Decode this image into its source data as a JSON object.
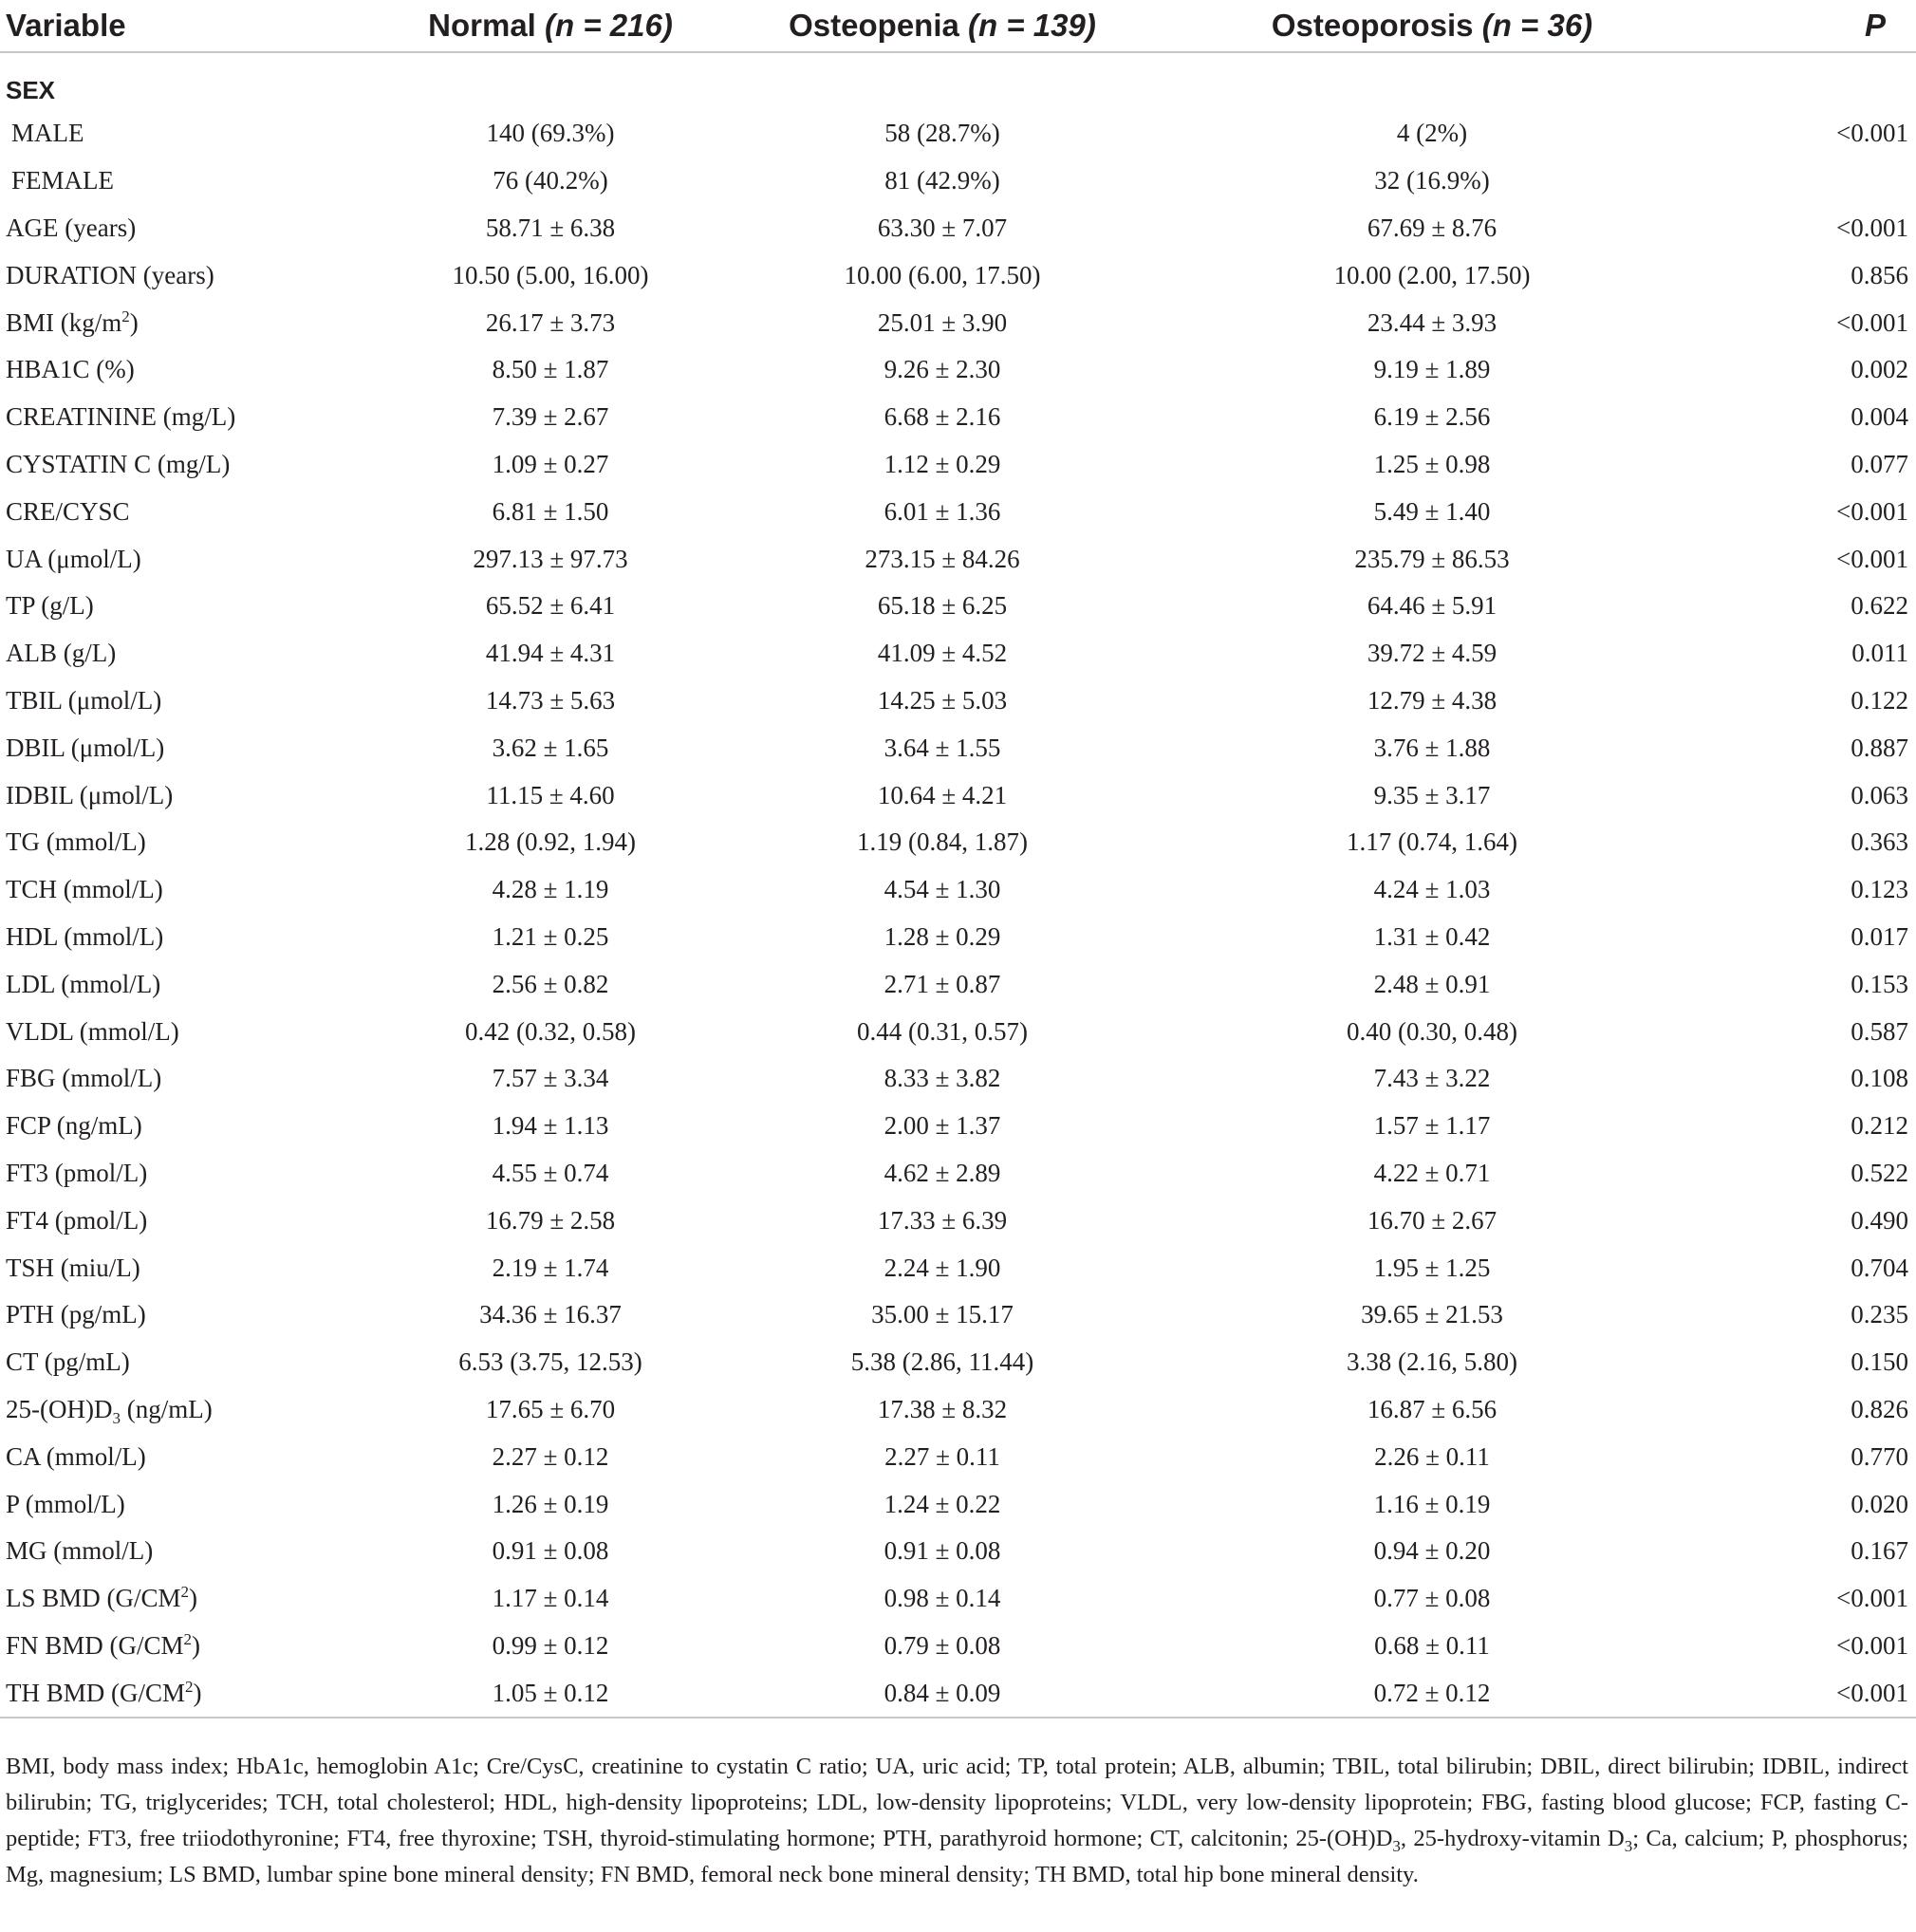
{
  "table": {
    "headers": {
      "variable": "Variable",
      "normal": "Normal",
      "normal_n": "(n = 216)",
      "osteopenia": "Osteopenia",
      "osteopenia_n": "(n = 139)",
      "osteoporosis": "Osteoporosis",
      "osteoporosis_n": "(n = 36)",
      "p": "P"
    },
    "section_sex": "SEX",
    "rows": [
      {
        "label": "MALE",
        "normal": "140 (69.3%)",
        "osteopenia": "58 (28.7%)",
        "osteoporosis": "4 (2%)",
        "p": "<0.001"
      },
      {
        "label": "FEMALE",
        "normal": "76 (40.2%)",
        "osteopenia": "81 (42.9%)",
        "osteoporosis": "32 (16.9%)",
        "p": ""
      },
      {
        "label": "AGE (years)",
        "normal": "58.71 ± 6.38",
        "osteopenia": "63.30 ± 7.07",
        "osteoporosis": "67.69 ± 8.76",
        "p": "<0.001"
      },
      {
        "label": "DURATION (years)",
        "normal": "10.50 (5.00, 16.00)",
        "osteopenia": "10.00 (6.00, 17.50)",
        "osteoporosis": "10.00 (2.00, 17.50)",
        "p": "0.856"
      },
      {
        "label_pre": "BMI (kg/m",
        "label_sup": "2",
        "label_post": ")",
        "normal": "26.17 ± 3.73",
        "osteopenia": "25.01 ± 3.90",
        "osteoporosis": "23.44 ± 3.93",
        "p": "<0.001"
      },
      {
        "label": "HBA1C (%)",
        "normal": "8.50 ± 1.87",
        "osteopenia": "9.26 ± 2.30",
        "osteoporosis": "9.19 ± 1.89",
        "p": "0.002"
      },
      {
        "label": "CREATININE (mg/L)",
        "normal": "7.39 ± 2.67",
        "osteopenia": "6.68 ± 2.16",
        "osteoporosis": "6.19 ± 2.56",
        "p": "0.004"
      },
      {
        "label": "CYSTATIN C (mg/L)",
        "normal": "1.09 ± 0.27",
        "osteopenia": "1.12 ± 0.29",
        "osteoporosis": "1.25 ± 0.98",
        "p": "0.077"
      },
      {
        "label": "CRE/CYSC",
        "normal": "6.81 ± 1.50",
        "osteopenia": "6.01 ± 1.36",
        "osteoporosis": "5.49 ± 1.40",
        "p": "<0.001"
      },
      {
        "label": "UA (μmol/L)",
        "normal": "297.13 ± 97.73",
        "osteopenia": "273.15 ± 84.26",
        "osteoporosis": "235.79 ± 86.53",
        "p": "<0.001"
      },
      {
        "label": "TP (g/L)",
        "normal": "65.52 ± 6.41",
        "osteopenia": "65.18 ± 6.25",
        "osteoporosis": "64.46 ± 5.91",
        "p": "0.622"
      },
      {
        "label": "ALB (g/L)",
        "normal": "41.94 ± 4.31",
        "osteopenia": "41.09 ± 4.52",
        "osteoporosis": "39.72 ± 4.59",
        "p": "0.011"
      },
      {
        "label": "TBIL (μmol/L)",
        "normal": "14.73 ± 5.63",
        "osteopenia": "14.25 ± 5.03",
        "osteoporosis": "12.79 ± 4.38",
        "p": "0.122"
      },
      {
        "label": "DBIL (μmol/L)",
        "normal": "3.62 ± 1.65",
        "osteopenia": "3.64 ± 1.55",
        "osteoporosis": "3.76 ± 1.88",
        "p": "0.887"
      },
      {
        "label": "IDBIL (μmol/L)",
        "normal": "11.15 ± 4.60",
        "osteopenia": "10.64 ± 4.21",
        "osteoporosis": "9.35 ± 3.17",
        "p": "0.063"
      },
      {
        "label": "TG (mmol/L)",
        "normal": "1.28 (0.92, 1.94)",
        "osteopenia": "1.19 (0.84, 1.87)",
        "osteoporosis": "1.17 (0.74, 1.64)",
        "p": "0.363"
      },
      {
        "label": "TCH (mmol/L)",
        "normal": "4.28 ± 1.19",
        "osteopenia": "4.54 ± 1.30",
        "osteoporosis": "4.24 ± 1.03",
        "p": "0.123"
      },
      {
        "label": "HDL (mmol/L)",
        "normal": "1.21 ± 0.25",
        "osteopenia": "1.28 ± 0.29",
        "osteoporosis": "1.31 ± 0.42",
        "p": "0.017"
      },
      {
        "label": "LDL (mmol/L)",
        "normal": "2.56 ± 0.82",
        "osteopenia": "2.71 ± 0.87",
        "osteoporosis": "2.48 ± 0.91",
        "p": "0.153"
      },
      {
        "label": "VLDL (mmol/L)",
        "normal": "0.42 (0.32, 0.58)",
        "osteopenia": "0.44 (0.31, 0.57)",
        "osteoporosis": "0.40 (0.30, 0.48)",
        "p": "0.587"
      },
      {
        "label": "FBG (mmol/L)",
        "normal": "7.57 ± 3.34",
        "osteopenia": "8.33 ± 3.82",
        "osteoporosis": "7.43 ± 3.22",
        "p": "0.108"
      },
      {
        "label": "FCP (ng/mL)",
        "normal": "1.94 ± 1.13",
        "osteopenia": "2.00 ± 1.37",
        "osteoporosis": "1.57 ± 1.17",
        "p": "0.212"
      },
      {
        "label": "FT3 (pmol/L)",
        "normal": "4.55 ± 0.74",
        "osteopenia": "4.62 ± 2.89",
        "osteoporosis": "4.22 ± 0.71",
        "p": "0.522"
      },
      {
        "label": "FT4 (pmol/L)",
        "normal": "16.79 ± 2.58",
        "osteopenia": "17.33 ± 6.39",
        "osteoporosis": "16.70 ± 2.67",
        "p": "0.490"
      },
      {
        "label": "TSH (miu/L)",
        "normal": "2.19 ± 1.74",
        "osteopenia": "2.24 ± 1.90",
        "osteoporosis": "1.95 ± 1.25",
        "p": "0.704"
      },
      {
        "label": "PTH (pg/mL)",
        "normal": "34.36 ± 16.37",
        "osteopenia": "35.00 ± 15.17",
        "osteoporosis": "39.65 ± 21.53",
        "p": "0.235"
      },
      {
        "label": "CT (pg/mL)",
        "normal": "6.53 (3.75, 12.53)",
        "osteopenia": "5.38 (2.86, 11.44)",
        "osteoporosis": "3.38 (2.16, 5.80)",
        "p": "0.150"
      },
      {
        "label_pre": "25-(OH)D",
        "label_sub": "3",
        "label_post": " (ng/mL)",
        "normal": "17.65 ± 6.70",
        "osteopenia": "17.38 ± 8.32",
        "osteoporosis": "16.87 ± 6.56",
        "p": "0.826"
      },
      {
        "label": "CA (mmol/L)",
        "normal": "2.27 ± 0.12",
        "osteopenia": "2.27 ± 0.11",
        "osteoporosis": "2.26 ± 0.11",
        "p": "0.770"
      },
      {
        "label": "P (mmol/L)",
        "normal": "1.26 ± 0.19",
        "osteopenia": "1.24 ± 0.22",
        "osteoporosis": "1.16 ± 0.19",
        "p": "0.020"
      },
      {
        "label": "MG (mmol/L)",
        "normal": "0.91 ± 0.08",
        "osteopenia": "0.91 ± 0.08",
        "osteoporosis": "0.94 ± 0.20",
        "p": "0.167"
      },
      {
        "label_pre": "LS BMD (G/CM",
        "label_sup": "2",
        "label_post": ")",
        "normal": "1.17 ± 0.14",
        "osteopenia": "0.98 ± 0.14",
        "osteoporosis": "0.77 ± 0.08",
        "p": "<0.001"
      },
      {
        "label_pre": "FN BMD (G/CM",
        "label_sup": "2",
        "label_post": ")",
        "normal": "0.99 ± 0.12",
        "osteopenia": "0.79 ± 0.08",
        "osteoporosis": "0.68 ± 0.11",
        "p": "<0.001"
      },
      {
        "label_pre": "TH BMD (G/CM",
        "label_sup": "2",
        "label_post": ")",
        "normal": "1.05 ± 0.12",
        "osteopenia": "0.84 ± 0.09",
        "osteoporosis": "0.72 ± 0.12",
        "p": "<0.001"
      }
    ]
  },
  "footnote": {
    "part1": "BMI, body mass index; HbA1c, hemoglobin A1c; Cre/CysC, creatinine to cystatin C ratio; UA, uric acid; TP, total protein; ALB, albumin; TBIL, total bilirubin; DBIL, direct bilirubin; IDBIL, indirect bilirubin; TG, triglycerides; TCH, total cholesterol; HDL, high-density lipoproteins; LDL, low-density lipoproteins; VLDL, very low-density lipoprotein; FBG, fasting blood glucose; FCP, fasting C-peptide; FT3, free triiodothyronine; FT4, free thyroxine; TSH, thyroid-stimulating hormone; PTH, parathyroid hormone; CT, calcitonin; 25-(OH)D",
    "sub1": "3",
    "part2": ", 25-hydroxy-vitamin D",
    "sub2": "3",
    "part3": "; Ca, calcium; P, phosphorus; Mg, magnesium; LS BMD, lumbar spine bone mineral density; FN BMD, femoral neck bone mineral density; TH BMD, total hip bone mineral density."
  }
}
